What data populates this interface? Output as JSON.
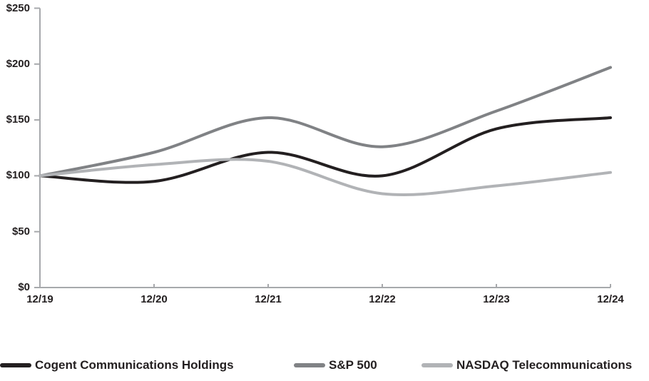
{
  "chart_data": {
    "type": "line",
    "title": "",
    "xlabel": "",
    "ylabel": "",
    "x_tick_labels": [
      "12/19",
      "12/20",
      "12/21",
      "12/22",
      "12/23",
      "12/24"
    ],
    "y_tick_labels": [
      "$0",
      "$50",
      "$100",
      "$150",
      "$200",
      "$250"
    ],
    "ylim": [
      0,
      250
    ],
    "y_tick_step": 50,
    "grid": false,
    "legend_position": "bottom",
    "axis_color": "#a7a9ac",
    "text_color": "#231f20",
    "smoothed_lines": true,
    "series": [
      {
        "name": "Cogent Communications Holdings",
        "color": "#231f20",
        "values": [
          100,
          95,
          121,
          100,
          142,
          152
        ]
      },
      {
        "name": "S&P 500",
        "color": "#808285",
        "values": [
          100,
          121,
          152,
          126,
          158,
          197
        ]
      },
      {
        "name": "NASDAQ Telecommunications",
        "color": "#b1b3b6",
        "values": [
          100,
          110,
          113,
          84,
          91,
          103
        ]
      }
    ]
  },
  "legend": {
    "items": [
      {
        "label": "Cogent Communications Holdings",
        "color": "#231f20"
      },
      {
        "label": "S&P 500",
        "color": "#808285"
      },
      {
        "label": "NASDAQ Telecommunications",
        "color": "#b1b3b6"
      }
    ]
  }
}
